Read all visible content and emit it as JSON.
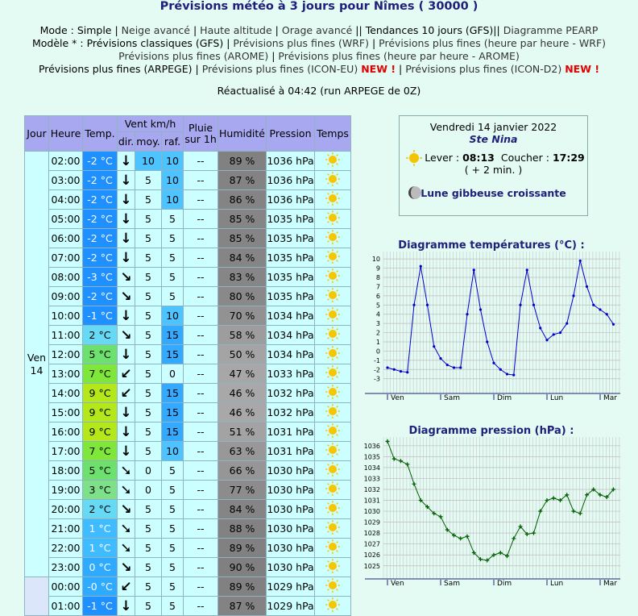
{
  "header": {
    "title": "Prévisions météo à 3 jours pour Nîmes ( 30000 )",
    "nav": [
      [
        [
          "Mode : ",
          "plain"
        ],
        [
          "Simple",
          "sel"
        ],
        [
          " | ",
          "plain"
        ],
        [
          "Neige avancé",
          "link"
        ],
        [
          " | ",
          "plain"
        ],
        [
          "Haute altitude",
          "link"
        ],
        [
          " | ",
          "plain"
        ],
        [
          "Orage avancé",
          "link"
        ],
        [
          " || ",
          "plain"
        ],
        [
          "Tendances 10 jours (GFS)",
          "sel"
        ],
        [
          "|| ",
          "plain"
        ],
        [
          "Diagramme PEARP",
          "link"
        ]
      ],
      [
        [
          "Modèle * : ",
          "plain"
        ],
        [
          "Prévisions classiques (GFS)",
          "sel"
        ],
        [
          " | ",
          "plain"
        ],
        [
          "Prévisions plus fines (WRF)",
          "link"
        ],
        [
          " | ",
          "plain"
        ],
        [
          "Prévisions plus fines (heure par heure - WRF)",
          "link"
        ]
      ],
      [
        [
          "Prévisions plus fines (AROME)",
          "link"
        ],
        [
          " | ",
          "plain"
        ],
        [
          "Prévisions plus fines (heure par heure - AROME)",
          "link"
        ]
      ],
      [
        [
          "Prévisions plus fines (ARPEGE)",
          "sel"
        ],
        [
          " | ",
          "plain"
        ],
        [
          "Prévisions plus fines (ICON-EU)",
          "link"
        ],
        [
          " ",
          "plain"
        ],
        [
          "NEW !",
          "new"
        ],
        [
          " | ",
          "plain"
        ],
        [
          "Prévisions plus fines (ICON-D2)",
          "link"
        ],
        [
          " ",
          "plain"
        ],
        [
          "NEW !",
          "new"
        ]
      ]
    ],
    "updated": "Réactualisé à 04:42 (run ARPEGE de 0Z)"
  },
  "info": {
    "date": "Vendredi 14 janvier 2022",
    "saint": "Ste Nina",
    "sunrise_label": "Lever : ",
    "sunrise": "08:13",
    "sunset_label": "Coucher : ",
    "sunset": "17:29",
    "day_change": "( + 2 min. )",
    "moon": "Lune gibbeuse croissante"
  },
  "table": {
    "headers": {
      "day": "Jour",
      "hour": "Heure",
      "temp": "Temp.",
      "wind": "Vent km/h",
      "dir": "dir.",
      "avg": "moy.",
      "gust": "raf.",
      "rain": [
        "Pluie",
        "sur 1h"
      ],
      "humidity": "Humidité",
      "pressure": "Pression",
      "weather": "Temps"
    },
    "days": [
      {
        "name": "Ven",
        "num": "14",
        "rows": [
          [
            "02:00",
            "-2 °C",
            "↓",
            10,
            10,
            "--",
            "89 %",
            "1036 hPa"
          ],
          [
            "03:00",
            "-2 °C",
            "↓",
            5,
            10,
            "--",
            "87 %",
            "1036 hPa"
          ],
          [
            "04:00",
            "-2 °C",
            "↓",
            5,
            10,
            "--",
            "86 %",
            "1036 hPa"
          ],
          [
            "05:00",
            "-2 °C",
            "↓",
            5,
            5,
            "--",
            "85 %",
            "1035 hPa"
          ],
          [
            "06:00",
            "-2 °C",
            "↓",
            5,
            5,
            "--",
            "85 %",
            "1035 hPa"
          ],
          [
            "07:00",
            "-2 °C",
            "↓",
            5,
            5,
            "--",
            "84 %",
            "1035 hPa"
          ],
          [
            "08:00",
            "-3 °C",
            "↘",
            5,
            5,
            "--",
            "83 %",
            "1035 hPa"
          ],
          [
            "09:00",
            "-2 °C",
            "↘",
            5,
            5,
            "--",
            "80 %",
            "1035 hPa"
          ],
          [
            "10:00",
            "-1 °C",
            "↓",
            5,
            10,
            "--",
            "70 %",
            "1034 hPa"
          ],
          [
            "11:00",
            "2 °C",
            "↘",
            5,
            15,
            "--",
            "58 %",
            "1034 hPa"
          ],
          [
            "12:00",
            "5 °C",
            "↓",
            5,
            15,
            "--",
            "50 %",
            "1034 hPa"
          ],
          [
            "13:00",
            "7 °C",
            "↙",
            5,
            0,
            "--",
            "47 %",
            "1033 hPa"
          ],
          [
            "14:00",
            "9 °C",
            "↙",
            5,
            15,
            "--",
            "46 %",
            "1032 hPa"
          ],
          [
            "15:00",
            "9 °C",
            "↓",
            5,
            15,
            "--",
            "46 %",
            "1032 hPa"
          ],
          [
            "16:00",
            "9 °C",
            "↓",
            5,
            15,
            "--",
            "51 %",
            "1031 hPa"
          ],
          [
            "17:00",
            "7 °C",
            "↓",
            5,
            10,
            "--",
            "63 %",
            "1031 hPa"
          ],
          [
            "18:00",
            "5 °C",
            "➘",
            0,
            5,
            "--",
            "66 %",
            "1030 hPa"
          ],
          [
            "19:00",
            "3 °C",
            "➘",
            0,
            5,
            "--",
            "77 %",
            "1030 hPa"
          ],
          [
            "20:00",
            "2 °C",
            "↘",
            5,
            5,
            "--",
            "84 %",
            "1030 hPa"
          ],
          [
            "21:00",
            "1 °C",
            "➘",
            5,
            5,
            "--",
            "88 %",
            "1030 hPa"
          ],
          [
            "22:00",
            "1 °C",
            "➘",
            5,
            5,
            "--",
            "89 %",
            "1030 hPa"
          ],
          [
            "23:00",
            "0 °C",
            "↘",
            5,
            5,
            "--",
            "90 %",
            "1030 hPa"
          ]
        ]
      },
      {
        "rows": [
          [
            "00:00",
            "-0 °C",
            "↙",
            5,
            5,
            "--",
            "89 %",
            "1029 hPa"
          ],
          [
            "01:00",
            "-1 °C",
            "↓",
            5,
            5,
            "--",
            "87 %",
            "1029 hPa"
          ]
        ]
      }
    ]
  },
  "chart_data": [
    {
      "type": "line",
      "title": "Diagramme températures (°C) :",
      "color": "#0000cc",
      "categories": [
        "Ven",
        null,
        null,
        null,
        null,
        null,
        null,
        null,
        "Sam",
        null,
        null,
        null,
        null,
        null,
        null,
        null,
        "Dim",
        null,
        null,
        null,
        null,
        null,
        null,
        null,
        "Lun",
        null,
        null,
        null,
        null,
        null,
        null,
        null,
        "Mar",
        null,
        null
      ],
      "values": [
        -1.8,
        -2,
        -2.2,
        -2.3,
        5,
        9.2,
        5,
        0.5,
        -0.8,
        -1.5,
        -1.8,
        -1.8,
        4,
        8.8,
        4.5,
        1,
        -1.3,
        -2,
        -2.5,
        -2.6,
        5,
        8.8,
        5,
        2.5,
        1.2,
        1.8,
        2,
        3,
        6,
        9.8,
        7,
        5,
        4.5,
        4,
        2.9
      ],
      "ylim": [
        -4.6,
        10.8
      ],
      "yticks": [
        -3,
        -2,
        -1,
        0,
        1,
        2,
        3,
        4,
        5,
        6,
        7,
        8,
        9,
        10
      ],
      "grid": true
    },
    {
      "type": "line",
      "title": "Diagramme pression (hPa) :",
      "color": "#006000",
      "categories": [
        "Ven",
        null,
        null,
        null,
        null,
        null,
        null,
        null,
        "Sam",
        null,
        null,
        null,
        null,
        null,
        null,
        null,
        "Dim",
        null,
        null,
        null,
        null,
        null,
        null,
        null,
        "Lun",
        null,
        null,
        null,
        null,
        null,
        null,
        null,
        "Mar",
        null,
        null
      ],
      "values": [
        1036.4,
        1034.8,
        1034.6,
        1034.3,
        1032.5,
        1031,
        1030.4,
        1029.8,
        1029.5,
        1028.3,
        1027.8,
        1027.5,
        1027.7,
        1026.2,
        1025.6,
        1025.5,
        1026,
        1026.2,
        1025.9,
        1027.5,
        1028.6,
        1027.9,
        1028,
        1030,
        1031,
        1031.2,
        1031,
        1031.5,
        1030,
        1029.8,
        1031.5,
        1032,
        1031.5,
        1031.3,
        1032
      ],
      "ylim": [
        1023.8,
        1036.8
      ],
      "yticks": [
        1025,
        1026,
        1027,
        1028,
        1029,
        1030,
        1031,
        1032,
        1033,
        1034,
        1035,
        1036
      ],
      "grid": true
    }
  ]
}
